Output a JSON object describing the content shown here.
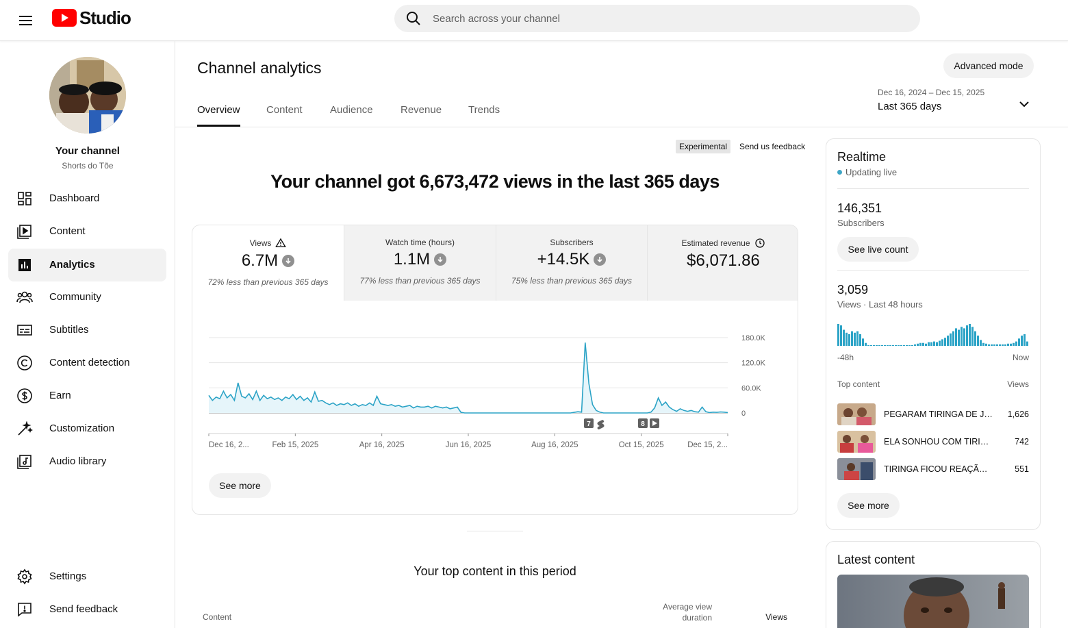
{
  "topbar": {
    "logo_text": "Studio",
    "search_placeholder": "Search across your channel"
  },
  "sidebar": {
    "channel_name": "Your channel",
    "channel_handle": "Shorts do Tõe",
    "items": [
      {
        "label": "Dashboard",
        "icon": "dashboard-icon"
      },
      {
        "label": "Content",
        "icon": "content-icon"
      },
      {
        "label": "Analytics",
        "icon": "analytics-icon",
        "active": true
      },
      {
        "label": "Community",
        "icon": "community-icon"
      },
      {
        "label": "Subtitles",
        "icon": "subtitles-icon"
      },
      {
        "label": "Content detection",
        "icon": "copyright-icon"
      },
      {
        "label": "Earn",
        "icon": "dollar-icon"
      },
      {
        "label": "Customization",
        "icon": "magic-wand-icon"
      },
      {
        "label": "Audio library",
        "icon": "audio-library-icon"
      }
    ],
    "bottom_items": [
      {
        "label": "Settings",
        "icon": "gear-icon"
      },
      {
        "label": "Send feedback",
        "icon": "feedback-icon"
      }
    ]
  },
  "header": {
    "title": "Channel analytics",
    "advanced_mode": "Advanced mode",
    "tabs": [
      "Overview",
      "Content",
      "Audience",
      "Revenue",
      "Trends"
    ],
    "active_tab": "Overview",
    "date_range": "Dec 16, 2024 – Dec 15, 2025",
    "date_label": "Last 365 days"
  },
  "summary": {
    "experimental_badge": "Experimental",
    "feedback_link": "Send us feedback",
    "headline": "Your channel got 6,673,472 views in the last 365 days"
  },
  "metrics": [
    {
      "label": "Views",
      "value": "6.7M",
      "note": "72% less than previous 365 days",
      "trend": "down",
      "extra_icon": "warning-icon"
    },
    {
      "label": "Watch time (hours)",
      "value": "1.1M",
      "note": "77% less than previous 365 days",
      "trend": "down"
    },
    {
      "label": "Subscribers",
      "value": "+14.5K",
      "note": "75% less than previous 365 days",
      "trend": "down"
    },
    {
      "label": "Estimated revenue",
      "value": "$6,071.86",
      "note": "",
      "extra_icon": "clock-icon"
    }
  ],
  "chart_data": {
    "type": "line",
    "title": "",
    "x_tick_labels": [
      "Dec 16, 2...",
      "Feb 15, 2025",
      "Apr 16, 2025",
      "Jun 16, 2025",
      "Aug 16, 2025",
      "Oct 15, 2025",
      "Dec 15, 2..."
    ],
    "y_tick_labels": [
      "180.0K",
      "120.0K",
      "60.0K",
      "0"
    ],
    "ylim": [
      0,
      180000
    ],
    "grid": true,
    "series": [
      {
        "color": "#2ba3c6",
        "fill": "#e6f5fa",
        "x_range": [
          "Dec 16, 2024",
          "Dec 15, 2025"
        ],
        "sampling_days": 4,
        "values": [
          42000,
          30000,
          38000,
          34000,
          52000,
          36000,
          44000,
          30000,
          72000,
          40000,
          36000,
          46000,
          32000,
          52000,
          30000,
          42000,
          34000,
          38000,
          32000,
          36000,
          30000,
          38000,
          34000,
          44000,
          32000,
          40000,
          30000,
          36000,
          26000,
          50000,
          28000,
          30000,
          24000,
          20000,
          24000,
          18000,
          22000,
          20000,
          24000,
          18000,
          22000,
          16000,
          20000,
          18000,
          24000,
          18000,
          40000,
          22000,
          20000,
          18000,
          20000,
          16000,
          18000,
          14000,
          16000,
          18000,
          12000,
          16000,
          14000,
          14000,
          16000,
          12000,
          16000,
          14000,
          12000,
          14000,
          10000,
          12000,
          14000,
          1500,
          0,
          0,
          0,
          0,
          0,
          0,
          0,
          0,
          0,
          0,
          0,
          0,
          0,
          0,
          0,
          0,
          0,
          0,
          0,
          0,
          0,
          0,
          0,
          0,
          0,
          0,
          0,
          0,
          0,
          0,
          1500,
          3000,
          2000,
          168000,
          70000,
          20000,
          6000,
          2000,
          0,
          0,
          0,
          0,
          0,
          0,
          0,
          0,
          0,
          0,
          0,
          0,
          0,
          2000,
          12000,
          36000,
          18000,
          26000,
          14000,
          8000,
          4000,
          10000,
          6000,
          4000,
          6000,
          3000,
          2000,
          14000,
          3000,
          1000,
          2000,
          1500,
          2500,
          2000,
          1000
        ]
      }
    ],
    "markers": [
      {
        "x_date": "Sep 2025",
        "count": "7",
        "icon": "shorts-icon"
      },
      {
        "x_date": "Oct 2025",
        "count": "8",
        "icon": "video-icon"
      }
    ]
  },
  "overview_see_more": "See more",
  "top_content": {
    "title": "Your top content in this period",
    "col_content": "Content",
    "col_avd": "Average view duration",
    "col_views": "Views"
  },
  "realtime": {
    "title": "Realtime",
    "live": "Updating live",
    "subs_value": "146,351",
    "subs_label": "Subscribers",
    "see_live_count": "See live count",
    "views_value": "3,059",
    "views_label": "Views · Last 48 hours",
    "axis_start": "-48h",
    "axis_end": "Now",
    "bars": [
      30,
      28,
      22,
      18,
      16,
      20,
      18,
      20,
      16,
      10,
      4,
      1,
      1,
      1,
      1,
      1,
      1,
      1,
      1,
      1,
      1,
      1,
      1,
      1,
      1,
      1,
      1,
      1,
      2,
      3,
      4,
      4,
      3,
      5,
      5,
      6,
      5,
      7,
      9,
      11,
      14,
      17,
      20,
      24,
      22,
      26,
      24,
      28,
      30,
      26,
      20,
      14,
      8,
      4,
      3,
      2,
      2,
      2,
      2,
      2,
      2,
      2,
      3,
      3,
      4,
      6,
      10,
      14,
      16,
      6
    ],
    "top_content_label": "Top content",
    "views_col_label": "Views",
    "items": [
      {
        "title": "PEGARAM TIRINGA DE JEITO",
        "views": "1,626"
      },
      {
        "title": "ELA SONHOU COM TIRINGA",
        "views": "742"
      },
      {
        "title": "TIRINGA FICOU REAÇÃO AO",
        "views": "551"
      }
    ],
    "see_more": "See more"
  },
  "latest": {
    "title": "Latest content"
  }
}
